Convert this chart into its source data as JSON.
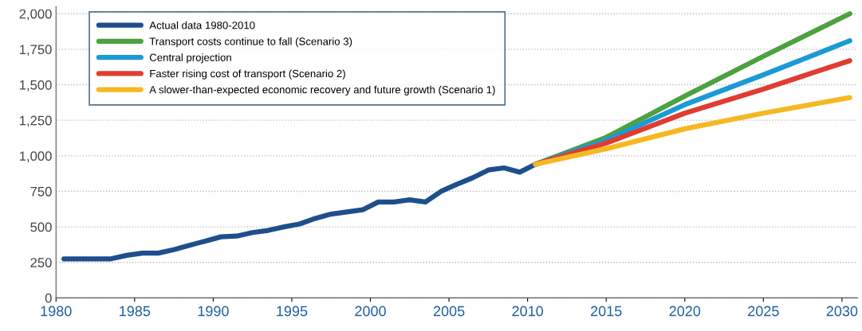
{
  "chart_data": {
    "type": "line",
    "legend": "top left",
    "grid": "y",
    "line_style": "solid",
    "marker": "none",
    "xlim": [
      1980,
      2031
    ],
    "xticks": [
      1980,
      1985,
      1990,
      1995,
      2000,
      2005,
      2010,
      2015,
      2020,
      2025,
      2030
    ],
    "ylim": [
      0,
      2050
    ],
    "yticks": [
      {
        "value": 0,
        "label": "0"
      },
      {
        "value": 250,
        "label": "250"
      },
      {
        "value": 500,
        "label": "500"
      },
      {
        "value": 750,
        "label": "750"
      },
      {
        "value": 1000,
        "label": "1,000"
      },
      {
        "value": 1250,
        "label": "1,250"
      },
      {
        "value": 1500,
        "label": "1,500"
      },
      {
        "value": 1750,
        "label": "1,750"
      },
      {
        "value": 2000,
        "label": "2,000"
      }
    ],
    "series": [
      {
        "name": "Actual data 1980-2010",
        "color": "#1f4e8c",
        "x": [
          1980.5,
          1981.5,
          1982.5,
          1983.5,
          1984.5,
          1985.5,
          1986.5,
          1987.5,
          1988.5,
          1989.5,
          1990.5,
          1991.5,
          1992.5,
          1993.5,
          1994.5,
          1995.5,
          1996.5,
          1997.5,
          1998.5,
          1999.5,
          2000.5,
          2001.5,
          2002.5,
          2003.5,
          2004.5,
          2005.5,
          2006.5,
          2007.5,
          2008.5,
          2009.5,
          2010.5
        ],
        "values": [
          275,
          275,
          275,
          275,
          300,
          315,
          315,
          340,
          370,
          400,
          430,
          435,
          460,
          475,
          500,
          520,
          560,
          590,
          605,
          620,
          675,
          675,
          690,
          675,
          750,
          800,
          845,
          900,
          915,
          885,
          940
        ]
      },
      {
        "name": "Transport costs continue to fall (Scenario 3)",
        "color": "#4ca140",
        "x": [
          2010.5,
          2015,
          2020,
          2025,
          2030.5
        ],
        "values": [
          940,
          1130,
          1420,
          1700,
          2000
        ]
      },
      {
        "name": "Central projection",
        "color": "#1b9ad6",
        "x": [
          2010.5,
          2015,
          2020,
          2025,
          2030.5
        ],
        "values": [
          940,
          1110,
          1360,
          1570,
          1810
        ]
      },
      {
        "name": "Faster rising cost of transport (Scenario 2)",
        "color": "#e03c31",
        "x": [
          2010.5,
          2015,
          2020,
          2025,
          2030.5
        ],
        "values": [
          940,
          1090,
          1300,
          1470,
          1670
        ]
      },
      {
        "name": "A slower-than-expected economic recovery and future growth (Scenario 1)",
        "color": "#f5b821",
        "x": [
          2010.5,
          2015,
          2020,
          2025,
          2030.5
        ],
        "values": [
          940,
          1050,
          1190,
          1300,
          1410
        ]
      }
    ]
  }
}
